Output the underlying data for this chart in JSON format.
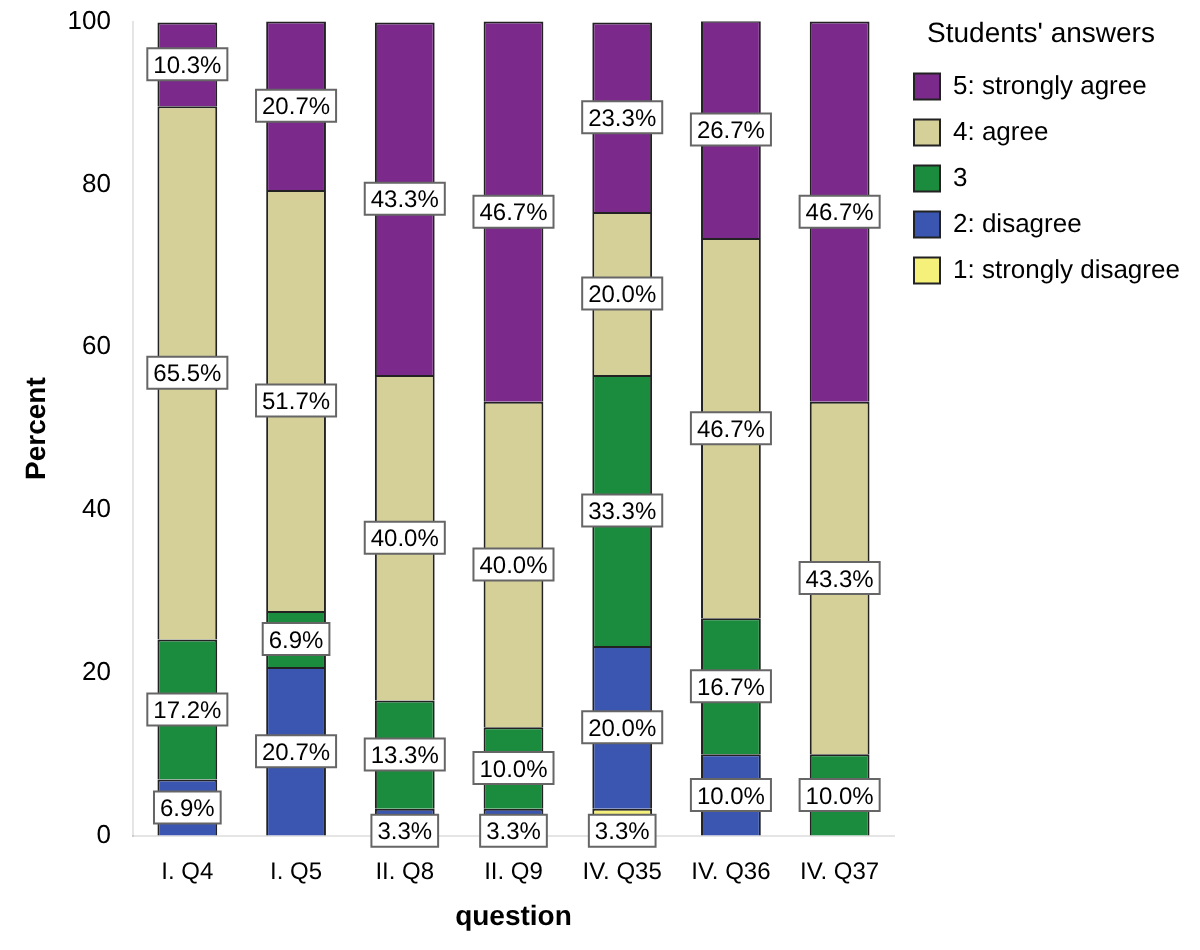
{
  "chart_data": {
    "type": "bar",
    "stacked": true,
    "xlabel": "question",
    "ylabel": "Percent",
    "legend_title": "Students' answers",
    "legend": "top right",
    "categories": [
      "I. Q4",
      "I. Q5",
      "II. Q8",
      "II. Q9",
      "IV. Q35",
      "IV. Q36",
      "IV. Q37"
    ],
    "ylim": [
      0,
      100
    ],
    "yticks": [
      0,
      20,
      40,
      60,
      80,
      100
    ],
    "grid": false,
    "series": [
      {
        "name": "1: strongly disagree",
        "color": "#f5f07a",
        "values": [
          null,
          null,
          null,
          null,
          3.3,
          null,
          null
        ],
        "value_labels": [
          null,
          null,
          null,
          null,
          "3.3%",
          null,
          null
        ]
      },
      {
        "name": "2: disagree",
        "color": "#3a56b0",
        "values": [
          6.9,
          20.7,
          3.3,
          3.3,
          20.0,
          10.0,
          null
        ],
        "value_labels": [
          "6.9%",
          "20.7%",
          "3.3%",
          "3.3%",
          "20.0%",
          "10.0%",
          null
        ]
      },
      {
        "name": "3",
        "color": "#1b8c3e",
        "values": [
          17.2,
          6.9,
          13.3,
          10.0,
          33.3,
          16.7,
          10.0
        ],
        "value_labels": [
          "17.2%",
          "6.9%",
          "13.3%",
          "10.0%",
          "33.3%",
          "16.7%",
          "10.0%"
        ]
      },
      {
        "name": "4: agree",
        "color": "#d5cf98",
        "values": [
          65.5,
          51.7,
          40.0,
          40.0,
          20.0,
          46.7,
          43.3
        ],
        "value_labels": [
          "65.5%",
          "51.7%",
          "40.0%",
          "40.0%",
          "20.0%",
          "46.7%",
          "43.3%"
        ]
      },
      {
        "name": "5: strongly agree",
        "color": "#7b2a8c",
        "values": [
          10.3,
          20.7,
          43.3,
          46.7,
          23.3,
          26.7,
          46.7
        ],
        "value_labels": [
          "10.3%",
          "20.7%",
          "43.3%",
          "46.7%",
          "23.3%",
          "26.7%",
          "46.7%"
        ]
      }
    ]
  }
}
